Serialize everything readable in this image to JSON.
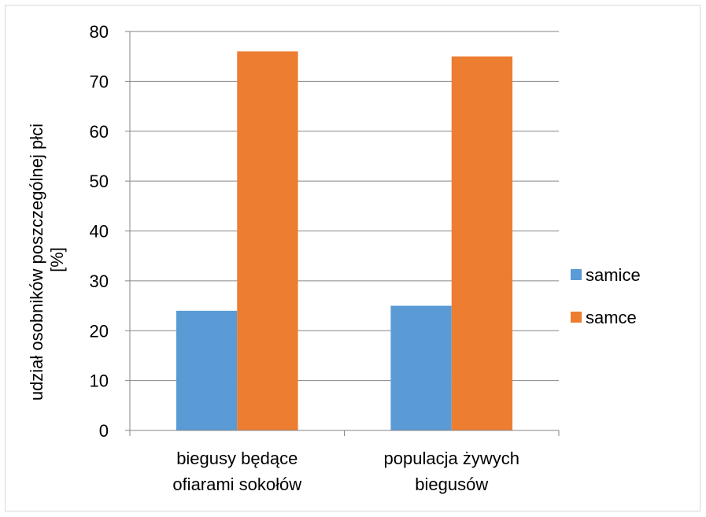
{
  "chart_data": {
    "type": "bar",
    "title": "",
    "ylabel": [
      "udział osobników poszczególnej płci",
      "[%]"
    ],
    "xlabel": "",
    "ylim": [
      0,
      80
    ],
    "y_ticks": [
      "0",
      "10",
      "20",
      "30",
      "40",
      "50",
      "60",
      "70",
      "80"
    ],
    "categories": [
      [
        "biegusy będące",
        "ofiarami sokołów"
      ],
      [
        "populacja żywych",
        "biegusów"
      ]
    ],
    "series": [
      {
        "name": "samice",
        "values": [
          24,
          25
        ],
        "color": "#5b9bd5"
      },
      {
        "name": "samce",
        "values": [
          76,
          75
        ],
        "color": "#ed7d31"
      }
    ],
    "grid": true,
    "legend_position": "right"
  }
}
